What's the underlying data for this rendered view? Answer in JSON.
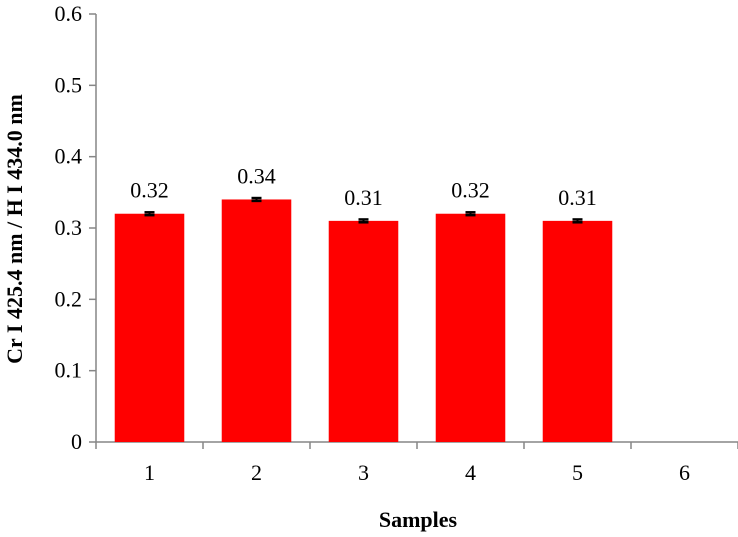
{
  "chart_data": {
    "type": "bar",
    "categories": [
      "1",
      "2",
      "3",
      "4",
      "5",
      "6"
    ],
    "values": [
      0.32,
      0.34,
      0.31,
      0.32,
      0.31,
      null
    ],
    "data_labels": [
      "0.32",
      "0.34",
      "0.31",
      "0.32",
      "0.31",
      ""
    ],
    "error": [
      0.002,
      0.002,
      0.002,
      0.002,
      0.002,
      null
    ],
    "xlabel": "Samples",
    "ylabel": "Cr I 425.4 nm / H I 434.0 nm",
    "ylim": [
      0,
      0.6
    ],
    "yticks": [
      "0",
      "0.1",
      "0.2",
      "0.3",
      "0.4",
      "0.5",
      "0.6"
    ],
    "grid": false,
    "legend": "none",
    "bar_color": "#ff0000",
    "error_bar_color": "#000000"
  }
}
